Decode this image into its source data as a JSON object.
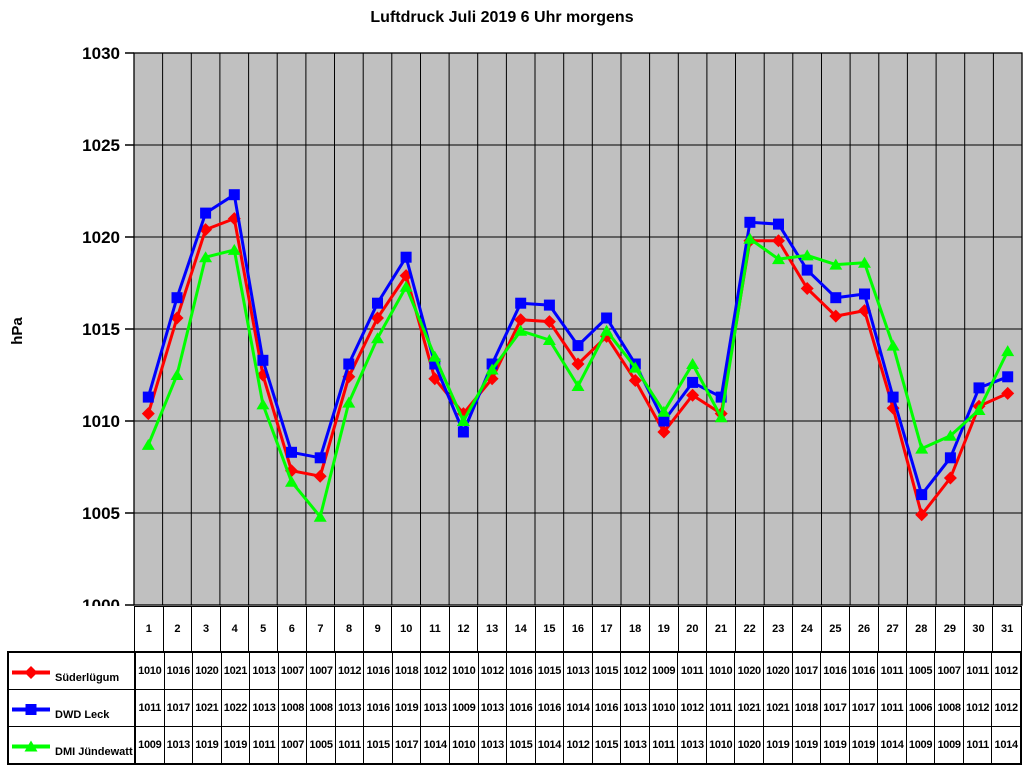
{
  "title": "Luftdruck Juli 2019 6 Uhr morgens",
  "chart_data": {
    "type": "line",
    "title": "Luftdruck Juli 2019 6 Uhr morgens",
    "xlabel": "",
    "ylabel": "hPa",
    "ylim": [
      1000,
      1030
    ],
    "yticks": [
      1000,
      1005,
      1010,
      1015,
      1020,
      1025,
      1030
    ],
    "categories": [
      1,
      2,
      3,
      4,
      5,
      6,
      7,
      8,
      9,
      10,
      11,
      12,
      13,
      14,
      15,
      16,
      17,
      18,
      19,
      20,
      21,
      22,
      23,
      24,
      25,
      26,
      27,
      28,
      29,
      30,
      31
    ],
    "grid": true,
    "plot_background": "#c0c0c0",
    "gridline_color": "#000000",
    "legend_position": "bottom-table",
    "series": [
      {
        "name": "Süderlügum",
        "color": "#ff0000",
        "marker": "diamond",
        "values_plotted": [
          1010.4,
          1015.6,
          1020.4,
          1021.0,
          1012.5,
          1007.3,
          1007.0,
          1012.4,
          1015.6,
          1017.9,
          1012.3,
          1010.4,
          1012.3,
          1015.5,
          1015.4,
          1013.1,
          1014.6,
          1012.2,
          1009.4,
          1011.4,
          1010.4,
          1019.8,
          1019.8,
          1017.2,
          1015.7,
          1016.0,
          1010.7,
          1004.9,
          1006.9,
          1010.8,
          1011.5
        ],
        "values_table": [
          1010,
          1016,
          1020,
          1021,
          1013,
          1007,
          1007,
          1012,
          1016,
          1018,
          1012,
          1010,
          1012,
          1016,
          1015,
          1013,
          1015,
          1012,
          1009,
          1011,
          1010,
          1020,
          1020,
          1017,
          1016,
          1016,
          1011,
          1005,
          1007,
          1011,
          1012
        ]
      },
      {
        "name": "DWD Leck",
        "color": "#0000ff",
        "marker": "square",
        "values_plotted": [
          1011.3,
          1016.7,
          1021.3,
          1022.3,
          1013.3,
          1008.3,
          1008.0,
          1013.1,
          1016.4,
          1018.9,
          1013.1,
          1009.4,
          1013.1,
          1016.4,
          1016.3,
          1014.1,
          1015.6,
          1013.1,
          1010.0,
          1012.1,
          1011.3,
          1020.8,
          1020.7,
          1018.2,
          1016.7,
          1016.9,
          1011.3,
          1006.0,
          1008.0,
          1011.8,
          1012.4
        ],
        "values_table": [
          1011,
          1017,
          1021,
          1022,
          1013,
          1008,
          1008,
          1013,
          1016,
          1019,
          1013,
          1009,
          1013,
          1016,
          1016,
          1014,
          1016,
          1013,
          1010,
          1012,
          1011,
          1021,
          1021,
          1018,
          1017,
          1017,
          1011,
          1006,
          1008,
          1012,
          1012
        ]
      },
      {
        "name": "DMI Jündewatt",
        "color": "#00ff00",
        "marker": "triangle-up",
        "values_plotted": [
          1008.7,
          1012.5,
          1018.9,
          1019.3,
          1010.9,
          1006.7,
          1004.8,
          1011.0,
          1014.5,
          1017.3,
          1013.5,
          1010.0,
          1012.8,
          1014.9,
          1014.4,
          1011.9,
          1014.9,
          1012.9,
          1010.5,
          1013.1,
          1010.2,
          1019.9,
          1018.8,
          1019.0,
          1018.5,
          1018.6,
          1014.1,
          1008.5,
          1009.2,
          1010.6,
          1013.8
        ],
        "values_table": [
          1009,
          1013,
          1019,
          1019,
          1011,
          1007,
          1005,
          1011,
          1015,
          1017,
          1014,
          1010,
          1013,
          1015,
          1014,
          1012,
          1015,
          1013,
          1011,
          1013,
          1010,
          1020,
          1019,
          1019,
          1019,
          1019,
          1014,
          1009,
          1009,
          1011,
          1014
        ]
      }
    ]
  }
}
